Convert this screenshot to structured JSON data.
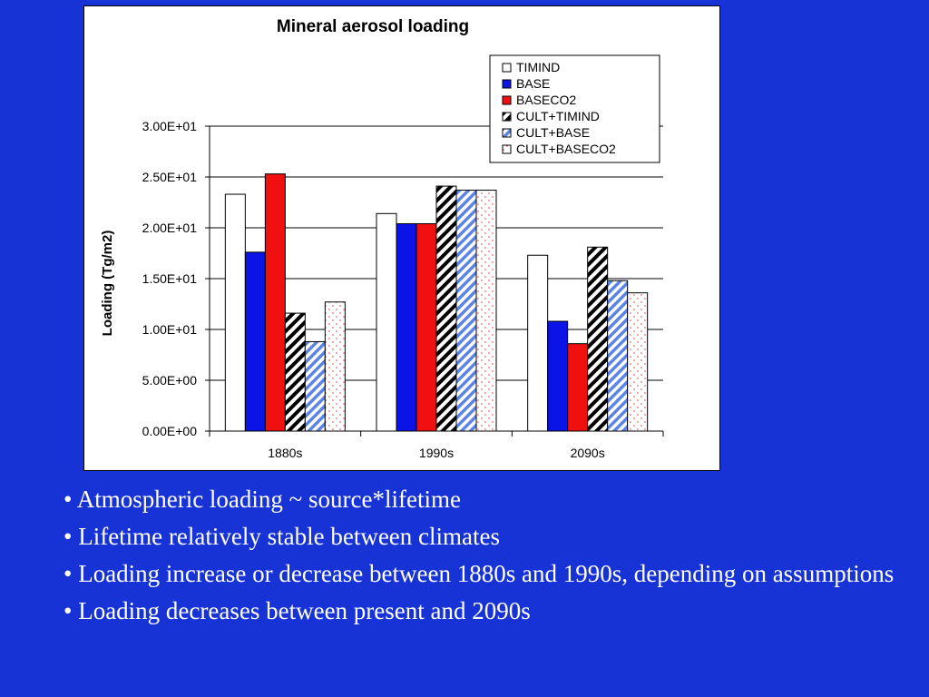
{
  "chart_data": {
    "type": "bar",
    "title": "Mineral aerosol loading",
    "ylabel": "Loading (Tg/m2)",
    "xlabel": "",
    "categories": [
      "1880s",
      "1990s",
      "2090s"
    ],
    "ylim": [
      0,
      30
    ],
    "yticks": [
      0,
      5,
      10,
      15,
      20,
      25,
      30
    ],
    "ytick_labels": [
      "0.00E+00",
      "5.00E+00",
      "1.00E+01",
      "1.50E+01",
      "2.00E+01",
      "2.50E+01",
      "3.00E+01"
    ],
    "grid": true,
    "legend_position": "top-right",
    "series": [
      {
        "name": "TIMIND",
        "values": [
          23.3,
          21.4,
          17.3
        ],
        "fill": "#ffffff",
        "pattern": "solid"
      },
      {
        "name": "BASE",
        "values": [
          17.6,
          20.4,
          10.8
        ],
        "fill": "#0a14e6",
        "pattern": "solid"
      },
      {
        "name": "BASECO2",
        "values": [
          25.3,
          20.4,
          8.6
        ],
        "fill": "#f01010",
        "pattern": "solid"
      },
      {
        "name": "CULT+TIMIND",
        "values": [
          11.6,
          24.1,
          18.1
        ],
        "fill": "#000000",
        "pattern": "diagonal-black"
      },
      {
        "name": "CULT+BASE",
        "values": [
          8.8,
          23.7,
          14.8
        ],
        "fill": "#5b84e6",
        "pattern": "diagonal-blue"
      },
      {
        "name": "CULT+BASECO2",
        "values": [
          12.7,
          23.7,
          13.6
        ],
        "fill": "#e06060",
        "pattern": "dotted-red"
      }
    ]
  },
  "bullets": [
    "• Atmospheric loading ~ source*lifetime",
    "• Lifetime relatively stable between climates",
    "• Loading increase or decrease between 1880s and 1990s, depending on assumptions",
    "• Loading decreases between present and 2090s"
  ]
}
